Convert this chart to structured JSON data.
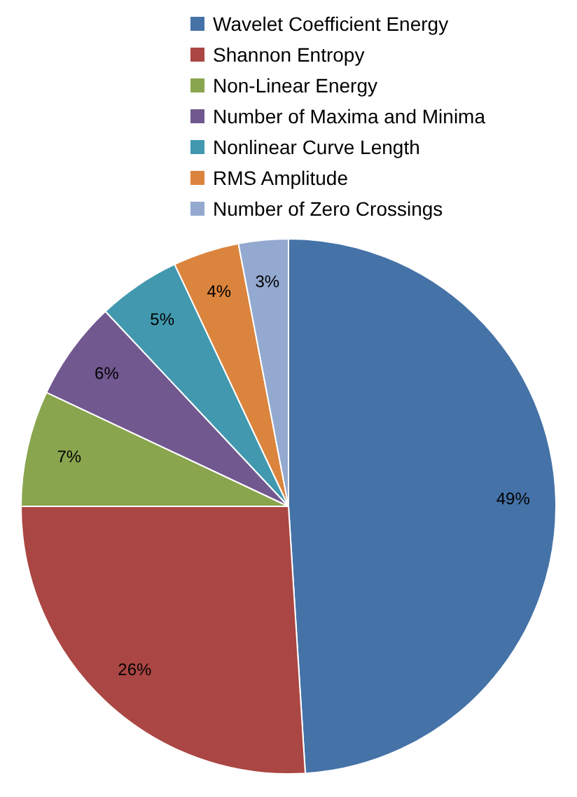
{
  "chart_data": {
    "type": "pie",
    "categories": [
      "Wavelet Coefficient Energy",
      "Shannon Entropy",
      "Non-Linear Energy",
      "Number of Maxima and Minima",
      "Nonlinear Curve Length",
      "RMS Amplitude",
      "Number of Zero Crossings"
    ],
    "values": [
      49,
      26,
      7,
      6,
      5,
      4,
      3
    ],
    "colors": [
      "#4572a7",
      "#aa4643",
      "#89a54e",
      "#71588f",
      "#4198af",
      "#db843d",
      "#93a9cf"
    ],
    "value_labels": [
      "49%",
      "26%",
      "7%",
      "6%",
      "5%",
      "4%",
      "3%"
    ],
    "legend": "top"
  }
}
